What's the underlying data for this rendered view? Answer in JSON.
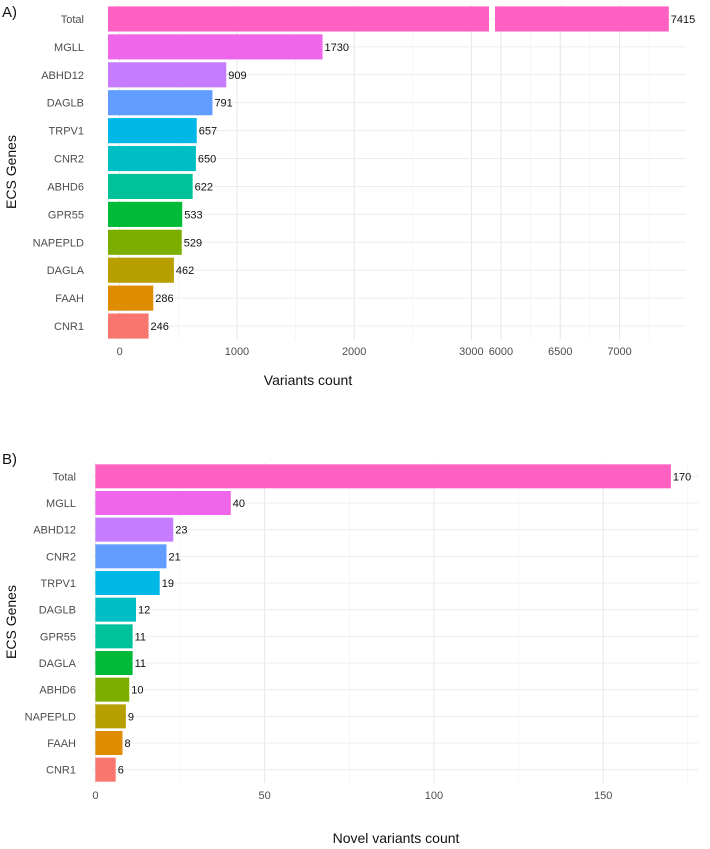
{
  "chart_data": [
    {
      "type": "bar",
      "orientation": "horizontal",
      "panel_label": "A)",
      "xlabel": "Variants count",
      "ylabel": "ECS Genes",
      "grid": true,
      "axis_break": {
        "from": 3150,
        "to": 5950
      },
      "xlim_left": [
        -100,
        3150
      ],
      "xlim_right": [
        5950,
        7560
      ],
      "xticks": [
        {
          "value": 0,
          "label": "0"
        },
        {
          "value": 1000,
          "label": "1000"
        },
        {
          "value": 2000,
          "label": "2000"
        },
        {
          "value": 3000,
          "label": "3000"
        },
        {
          "value": 6000,
          "label": "6000"
        },
        {
          "value": 6500,
          "label": "6500"
        },
        {
          "value": 7000,
          "label": "7000"
        }
      ],
      "categories": [
        "Total",
        "MGLL",
        "ABHD12",
        "DAGLB",
        "TRPV1",
        "CNR2",
        "ABHD6",
        "GPR55",
        "NAPEPLD",
        "DAGLA",
        "FAAH",
        "CNR1"
      ],
      "values": [
        7415,
        1730,
        909,
        791,
        657,
        650,
        622,
        533,
        529,
        462,
        286,
        246
      ],
      "value_labels": [
        "7415",
        "1730",
        "909",
        "791",
        "657",
        "650",
        "622",
        "533",
        "529",
        "462",
        "286",
        "246"
      ],
      "colors": [
        "#FF61C3",
        "#F066EA",
        "#C77CFF",
        "#619CFF",
        "#00B8E7",
        "#00BFC4",
        "#00C19A",
        "#00BA38",
        "#7CAE00",
        "#B79F00",
        "#DE8C00",
        "#F8766D"
      ]
    },
    {
      "type": "bar",
      "orientation": "horizontal",
      "panel_label": "B)",
      "xlabel": "Novel variants count",
      "ylabel": "ECS Genes",
      "grid": true,
      "xlim": [
        -1,
        178
      ],
      "xticks": [
        {
          "value": 0,
          "label": "0"
        },
        {
          "value": 50,
          "label": "50"
        },
        {
          "value": 100,
          "label": "100"
        },
        {
          "value": 150,
          "label": "150"
        }
      ],
      "categories": [
        "Total",
        "MGLL",
        "ABHD12",
        "CNR2",
        "TRPV1",
        "DAGLB",
        "GPR55",
        "DAGLA",
        "ABHD6",
        "NAPEPLD",
        "FAAH",
        "CNR1"
      ],
      "values": [
        170,
        40,
        23,
        21,
        19,
        12,
        11,
        11,
        10,
        9,
        8,
        6
      ],
      "value_labels": [
        "170",
        "40",
        "23",
        "21",
        "19",
        "12",
        "11",
        "11",
        "10",
        "9",
        "8",
        "6"
      ],
      "colors": [
        "#FF61C3",
        "#F066EA",
        "#C77CFF",
        "#619CFF",
        "#00B8E7",
        "#00BFC4",
        "#00C19A",
        "#00BA38",
        "#7CAE00",
        "#B79F00",
        "#DE8C00",
        "#F8766D"
      ]
    }
  ]
}
